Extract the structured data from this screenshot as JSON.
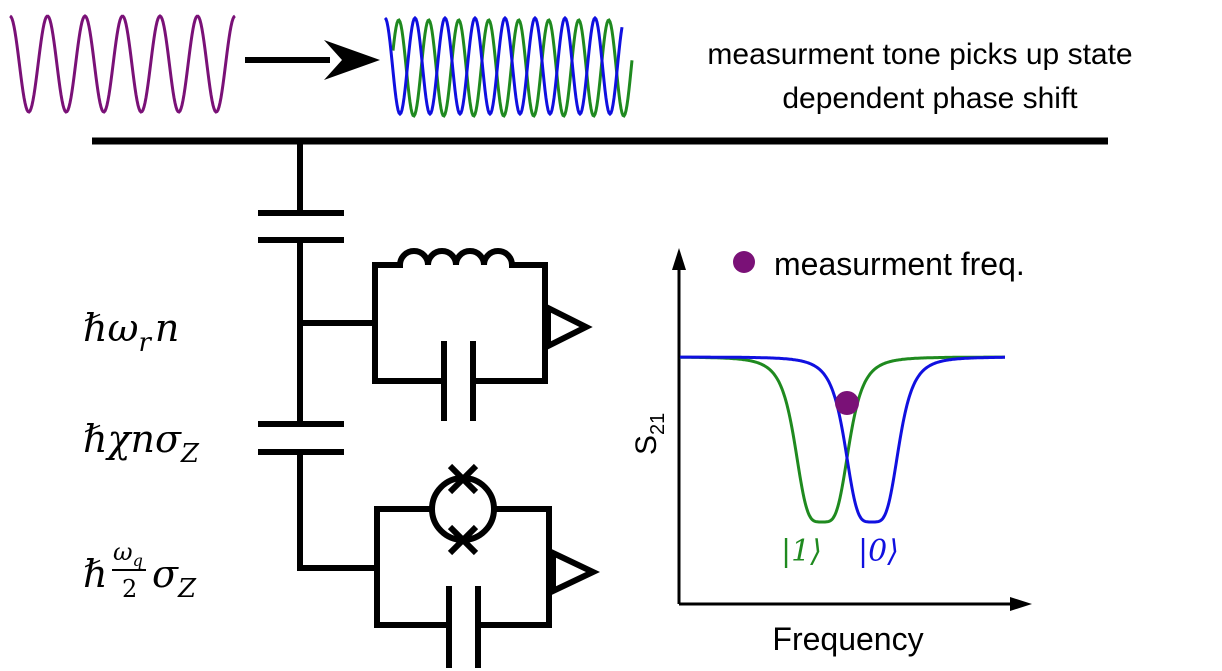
{
  "caption": {
    "line1": "measurment tone picks up state",
    "line2": "dependent phase shift"
  },
  "hamiltonian": {
    "resonator": {
      "main": "ℏω",
      "sub": "r",
      "tail": "n"
    },
    "dispersive": {
      "main": "ℏχnσ",
      "sub": "Z"
    },
    "qubit": {
      "hbar": "ℏ",
      "num": "ω",
      "num_sub": "q",
      "den": "2",
      "sigma": "σ",
      "sub": "Z"
    }
  },
  "plot": {
    "legend_label": "measurment freq.",
    "xlabel": "Frequency",
    "ylabel_main": "S",
    "ylabel_sub": "21",
    "state1_label": "|1⟩",
    "state0_label": "|0⟩"
  },
  "colors": {
    "purple": "#7a1177",
    "green": "#1f8a1f",
    "blue": "#1010e0",
    "black": "#000000"
  },
  "icons": {
    "arrow": "right-arrow-icon",
    "josephson": "josephson-junction-icon",
    "ground": "ground-icon"
  }
}
